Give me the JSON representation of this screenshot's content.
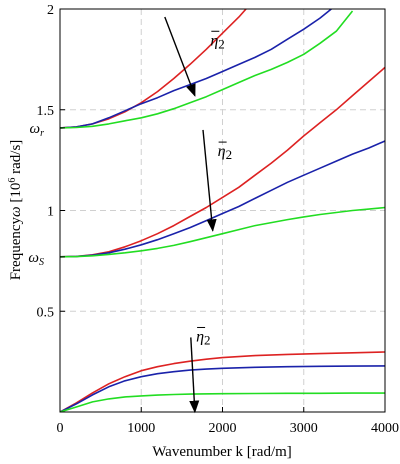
{
  "chart_data": {
    "type": "line",
    "xlabel": "Wavenumber k [rad/m]",
    "ylabel": "Frequency ω [10⁶ rad/s]",
    "ylabel_parts": {
      "main": "Frequency",
      "omega": "ω",
      "bracket_open": " [10",
      "exp": "6",
      "bracket_close": " rad/s]"
    },
    "xlim": [
      0,
      4000
    ],
    "ylim": [
      0,
      2
    ],
    "x_ticks": [
      0,
      1000,
      2000,
      3000,
      4000
    ],
    "x_tick_labels": [
      "0",
      "1000",
      "2000",
      "3000",
      "4000"
    ],
    "y_ticks": [
      0.5,
      1,
      1.5,
      2
    ],
    "y_tick_labels": [
      "0.5",
      "1",
      "1.5",
      "2"
    ],
    "grid": true,
    "special_y_ticks": [
      {
        "y": 1.41,
        "symbol": "ω",
        "sub": "r"
      },
      {
        "y": 0.77,
        "symbol": "ω",
        "sub": "S"
      }
    ],
    "annotations": [
      {
        "text_main": "η",
        "text_sub": "2",
        "label_at": [
          3700,
          1.82
        ],
        "from": [
          2580,
          1.96
        ],
        "to": [
          3320,
          1.57
        ]
      },
      {
        "text_main": "η",
        "text_sub": "2",
        "label_at": [
          3880,
          1.27
        ],
        "from": [
          3520,
          1.4
        ],
        "to": [
          3760,
          0.9
        ]
      },
      {
        "text_main": "η",
        "text_sub": "2",
        "label_at": [
          3350,
          0.35
        ],
        "from": [
          3220,
          0.37
        ],
        "to": [
          3320,
          0.0
        ]
      }
    ],
    "series": [
      {
        "color": "#dd2222",
        "x": [
          0,
          200,
          400,
          600,
          800,
          1000,
          1200,
          1400,
          1600,
          1800,
          2000,
          2200,
          2400,
          2600
        ],
        "y": [
          1.41,
          1.415,
          1.43,
          1.455,
          1.49,
          1.535,
          1.59,
          1.655,
          1.725,
          1.8,
          1.88,
          1.96,
          2.05,
          2.14
        ]
      },
      {
        "color": "#1a22aa",
        "x": [
          0,
          200,
          400,
          600,
          800,
          1000,
          1200,
          1400,
          1600,
          1800,
          2000,
          2200,
          2400,
          2600,
          2800,
          3000,
          3200,
          3400
        ],
        "y": [
          1.41,
          1.415,
          1.43,
          1.46,
          1.495,
          1.53,
          1.56,
          1.595,
          1.625,
          1.655,
          1.69,
          1.725,
          1.76,
          1.8,
          1.85,
          1.9,
          1.955,
          2.02
        ]
      },
      {
        "color": "#22dd22",
        "x": [
          0,
          200,
          400,
          600,
          800,
          1000,
          1200,
          1400,
          1600,
          1800,
          2000,
          2200,
          2400,
          2600,
          2800,
          3000,
          3200,
          3400,
          3600
        ],
        "y": [
          1.41,
          1.412,
          1.418,
          1.43,
          1.445,
          1.46,
          1.48,
          1.505,
          1.535,
          1.565,
          1.6,
          1.635,
          1.67,
          1.7,
          1.735,
          1.775,
          1.83,
          1.89,
          1.99
        ]
      },
      {
        "color": "#dd2222",
        "x": [
          0,
          200,
          400,
          600,
          800,
          1000,
          1200,
          1400,
          1600,
          1800,
          2000,
          2200,
          2400,
          2600,
          2800,
          3000,
          3200,
          3400,
          3600,
          3800,
          4000
        ],
        "y": [
          0.77,
          0.772,
          0.78,
          0.795,
          0.82,
          0.85,
          0.885,
          0.925,
          0.97,
          1.015,
          1.065,
          1.115,
          1.175,
          1.235,
          1.3,
          1.37,
          1.435,
          1.5,
          1.57,
          1.64,
          1.71
        ]
      },
      {
        "color": "#1a22aa",
        "x": [
          0,
          200,
          400,
          600,
          800,
          1000,
          1200,
          1400,
          1600,
          1800,
          2000,
          2200,
          2400,
          2600,
          2800,
          3000,
          3200,
          3400,
          3600,
          3800,
          4000
        ],
        "y": [
          0.77,
          0.772,
          0.778,
          0.79,
          0.808,
          0.83,
          0.855,
          0.885,
          0.915,
          0.95,
          0.985,
          1.02,
          1.06,
          1.1,
          1.14,
          1.175,
          1.21,
          1.245,
          1.28,
          1.31,
          1.345
        ]
      },
      {
        "color": "#22dd22",
        "x": [
          0,
          200,
          400,
          600,
          800,
          1000,
          1200,
          1400,
          1600,
          1800,
          2000,
          2200,
          2400,
          2600,
          2800,
          3000,
          3200,
          3400,
          3600,
          3800,
          4000
        ],
        "y": [
          0.77,
          0.771,
          0.775,
          0.782,
          0.79,
          0.8,
          0.812,
          0.827,
          0.845,
          0.865,
          0.885,
          0.905,
          0.925,
          0.94,
          0.955,
          0.968,
          0.98,
          0.99,
          1.0,
          1.007,
          1.015
        ]
      },
      {
        "color": "#dd2222",
        "x": [
          0,
          200,
          400,
          600,
          800,
          1000,
          1200,
          1400,
          1600,
          1800,
          2000,
          2400,
          2800,
          3200,
          3600,
          4000
        ],
        "y": [
          0.0,
          0.045,
          0.095,
          0.14,
          0.175,
          0.205,
          0.225,
          0.24,
          0.252,
          0.262,
          0.27,
          0.28,
          0.286,
          0.29,
          0.294,
          0.298
        ]
      },
      {
        "color": "#1a22aa",
        "x": [
          0,
          200,
          400,
          600,
          800,
          1000,
          1200,
          1400,
          1600,
          1800,
          2000,
          2400,
          2800,
          3200,
          3600,
          4000
        ],
        "y": [
          0.0,
          0.04,
          0.085,
          0.125,
          0.155,
          0.175,
          0.19,
          0.2,
          0.208,
          0.213,
          0.217,
          0.222,
          0.225,
          0.227,
          0.228,
          0.229
        ]
      },
      {
        "color": "#22dd22",
        "x": [
          0,
          200,
          400,
          600,
          800,
          1000,
          1200,
          1400,
          1600,
          2000,
          2400,
          2800,
          3200,
          3600,
          4000
        ],
        "y": [
          0.0,
          0.025,
          0.05,
          0.065,
          0.075,
          0.08,
          0.084,
          0.087,
          0.089,
          0.091,
          0.092,
          0.093,
          0.093,
          0.094,
          0.094
        ]
      }
    ]
  }
}
